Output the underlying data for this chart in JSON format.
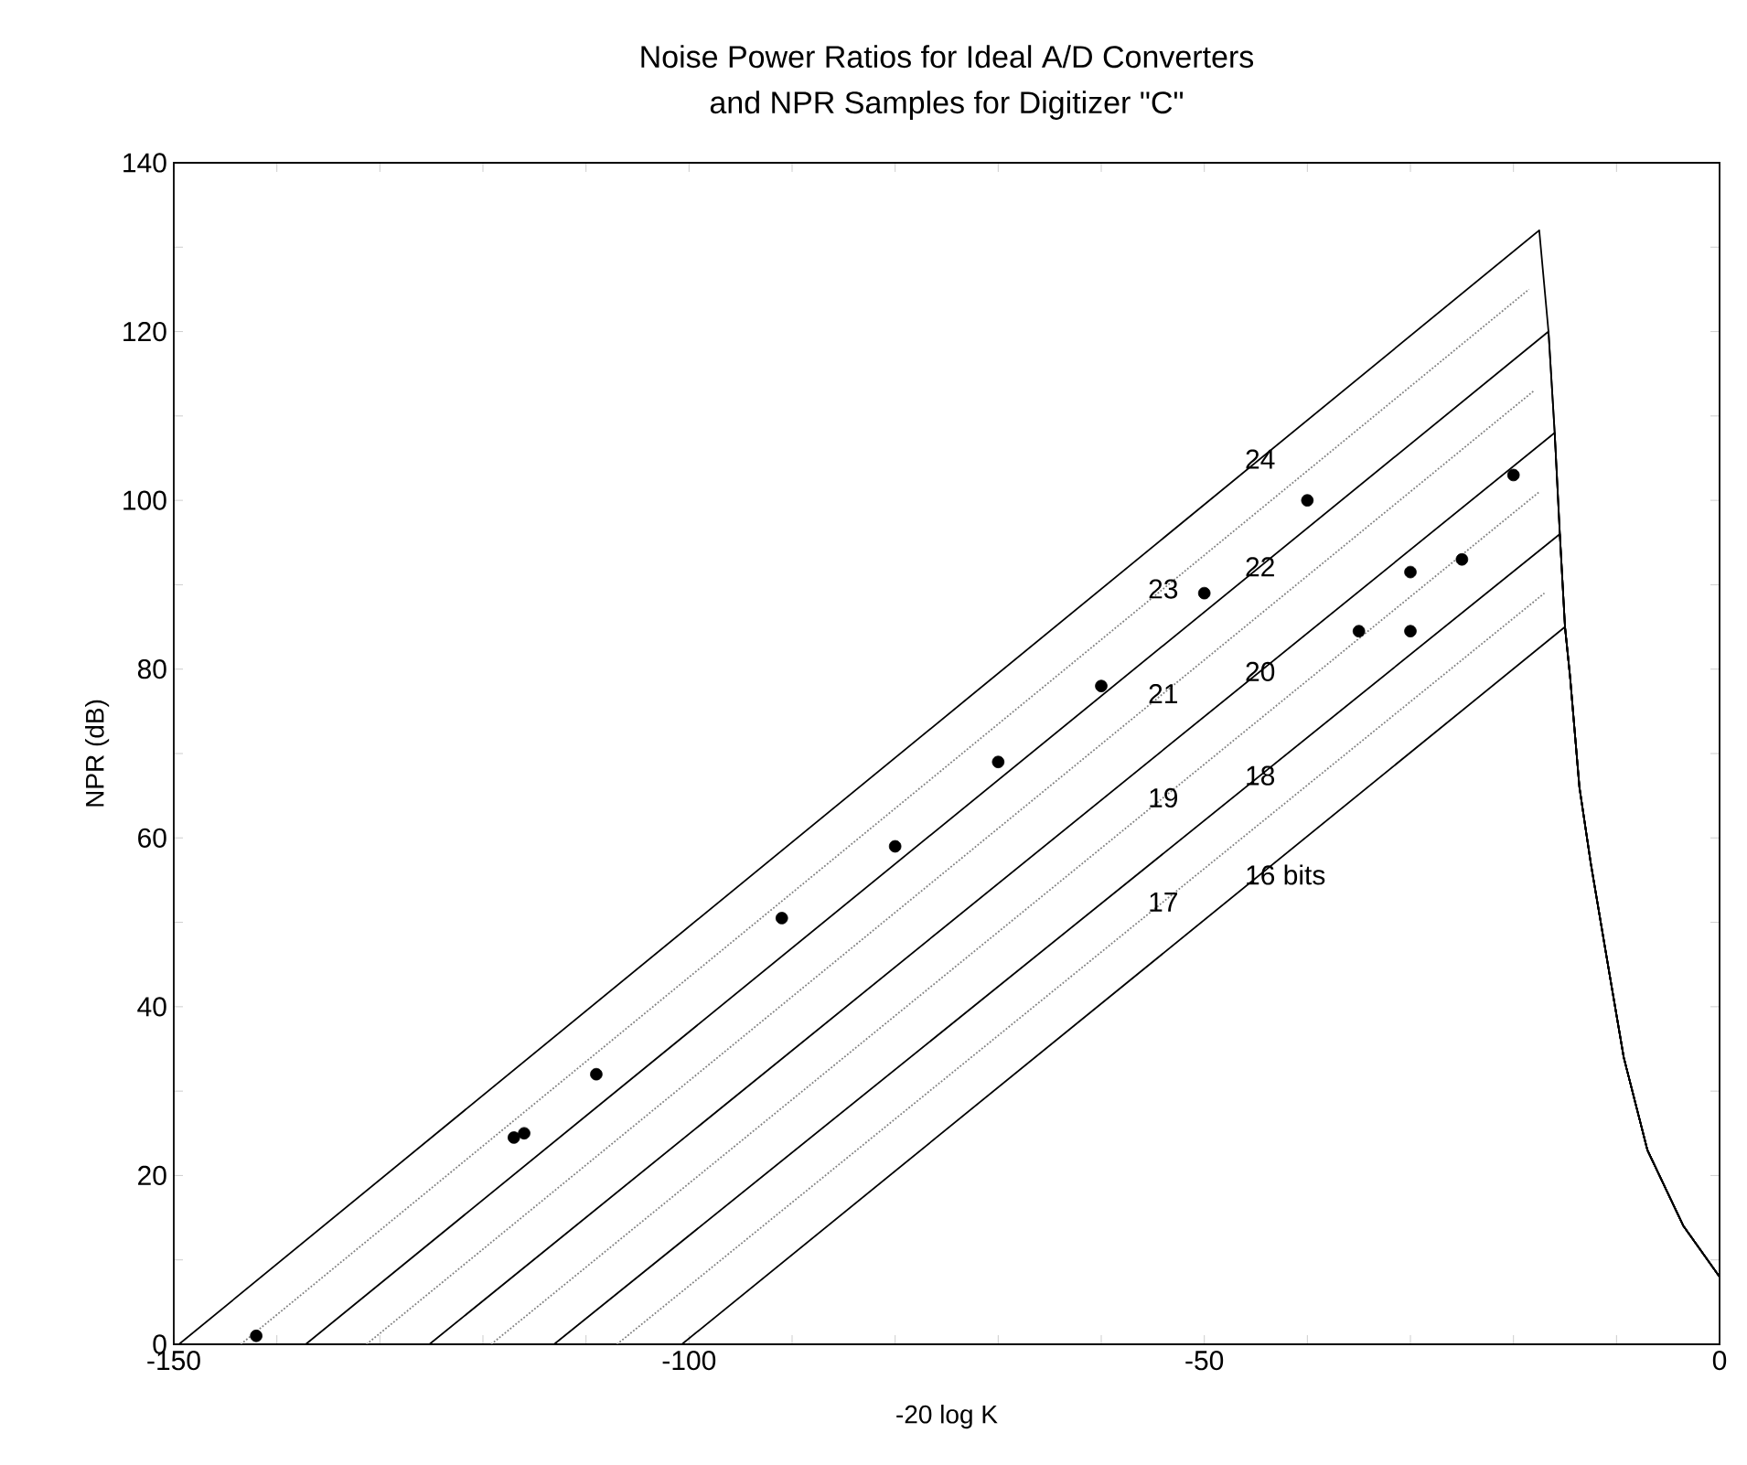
{
  "chart_data": {
    "type": "line",
    "title": "Noise Power Ratios for Ideal A/D Converters",
    "subtitle": "and NPR Samples for Digitizer \"C\"",
    "xlabel": "-20 log K",
    "ylabel": "NPR (dB)",
    "xlim": [
      -150,
      0
    ],
    "ylim": [
      0,
      140
    ],
    "xticks": [
      -150,
      {
        "value": -140,
        "label": null
      },
      {
        "value": -130,
        "label": null
      },
      {
        "value": -120,
        "label": null
      },
      {
        "value": -110,
        "label": null
      },
      -100,
      {
        "value": -90,
        "label": null
      },
      {
        "value": -80,
        "label": null
      },
      {
        "value": -70,
        "label": null
      },
      {
        "value": -60,
        "label": null
      },
      -50,
      {
        "value": -40,
        "label": null
      },
      {
        "value": -30,
        "label": null
      },
      {
        "value": -20,
        "label": null
      },
      {
        "value": -10,
        "label": null
      },
      0
    ],
    "yticks": [
      0,
      {
        "value": 10,
        "label": null
      },
      20,
      {
        "value": 30,
        "label": null
      },
      40,
      {
        "value": 50,
        "label": null
      },
      60,
      {
        "value": 70,
        "label": null
      },
      80,
      {
        "value": 90,
        "label": null
      },
      100,
      {
        "value": 110,
        "label": null
      },
      120,
      {
        "value": 130,
        "label": null
      },
      140
    ],
    "grid": false,
    "series": [
      {
        "name": "24",
        "color": "#000000",
        "marker": "none",
        "line_style": "solid",
        "x": [
          -149.5,
          -17.5,
          -16.6,
          -16,
          -15.5,
          -15,
          -14.5,
          -13.6,
          -12.5,
          -10.7,
          -9.3,
          -7,
          -3.5,
          0
        ],
        "values": [
          0,
          132,
          120,
          108,
          96,
          85,
          79,
          66,
          57,
          44,
          34,
          23,
          14,
          8
        ]
      },
      {
        "name": "22",
        "color": "#000000",
        "marker": "none",
        "line_style": "solid",
        "x": [
          -137.2,
          -16.6,
          -16,
          -15.5,
          -15,
          -14.5,
          -13.6,
          -12.5,
          -10.7,
          -9.3,
          -7,
          -3.5,
          0
        ],
        "values": [
          0,
          120,
          108,
          96,
          85,
          79,
          66,
          57,
          44,
          34,
          23,
          14,
          8
        ]
      },
      {
        "name": "20",
        "color": "#000000",
        "marker": "none",
        "line_style": "solid",
        "x": [
          -125.2,
          -16,
          -15.5,
          -15,
          -14.5,
          -13.6,
          -12.5,
          -10.7,
          -9.3,
          -7,
          -3.5,
          0
        ],
        "values": [
          0,
          108,
          96,
          85,
          79,
          66,
          57,
          44,
          34,
          23,
          14,
          8
        ]
      },
      {
        "name": "18",
        "color": "#000000",
        "marker": "none",
        "line_style": "solid",
        "x": [
          -113.1,
          -15.5,
          -15,
          -14.5,
          -13.6,
          -12.5,
          -10.7,
          -9.3,
          -7,
          -3.5,
          0
        ],
        "values": [
          0,
          96,
          85,
          79,
          66,
          57,
          44,
          34,
          23,
          14,
          8
        ]
      },
      {
        "name": "16 bits",
        "color": "#000000",
        "marker": "none",
        "line_style": "solid",
        "x": [
          -100.7,
          -15,
          -14.5,
          -13.6,
          -12.5,
          -10.7,
          -9.3,
          -7,
          -3.5,
          0
        ],
        "values": [
          0,
          85,
          79,
          66,
          57,
          44,
          34,
          23,
          14,
          8
        ]
      },
      {
        "name": "23",
        "color": "#808080",
        "marker": "none",
        "line_style": "dotted",
        "x": [
          -143.5,
          -18.5
        ],
        "values": [
          0,
          125
        ]
      },
      {
        "name": "21",
        "color": "#808080",
        "marker": "none",
        "line_style": "dotted",
        "x": [
          -131.3,
          -18
        ],
        "values": [
          0,
          113
        ]
      },
      {
        "name": "19",
        "color": "#808080",
        "marker": "none",
        "line_style": "dotted",
        "x": [
          -119.2,
          -17.5
        ],
        "values": [
          0,
          101
        ]
      },
      {
        "name": "17",
        "color": "#808080",
        "marker": "none",
        "line_style": "dotted",
        "x": [
          -107,
          -17
        ],
        "values": [
          0,
          89
        ]
      },
      {
        "type": "scatter",
        "color": "#000000",
        "marker": "circle",
        "x": [
          -142,
          -117,
          -116,
          -109,
          -91,
          -80,
          -70,
          -60,
          -50,
          -40,
          -35,
          -30,
          -30,
          -25,
          -20
        ],
        "values": [
          1,
          24.5,
          25,
          32,
          50.5,
          59,
          69,
          78,
          89,
          100,
          84.5,
          91.5,
          84.5,
          93,
          103
        ]
      }
    ]
  }
}
